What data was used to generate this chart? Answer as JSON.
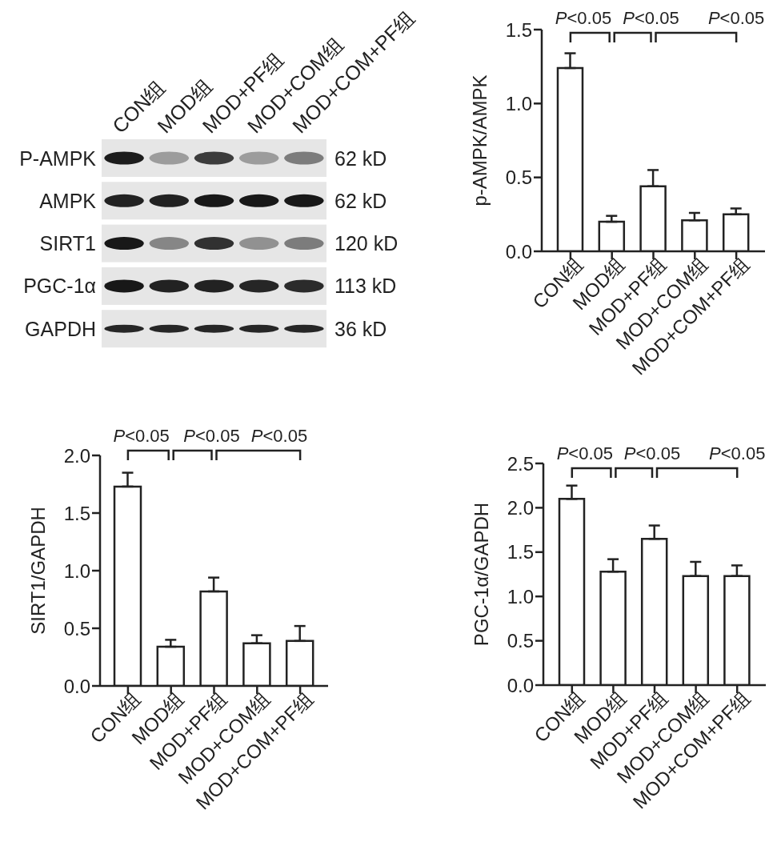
{
  "chart_data": [
    {
      "type": "other",
      "categories": [
        "CON组",
        "MOD组",
        "MOD+PF组",
        "MOD+COM组",
        "MOD+COM+PF组"
      ],
      "y_categories": [
        "P-AMPK",
        "AMPK",
        "SIRT1",
        "PGC-1α",
        "GAPDH"
      ],
      "y2_categories": [
        "62 kD",
        "62 kD",
        "120 kD",
        "113 kD",
        "36 kD"
      ]
    },
    {
      "type": "bar",
      "categories": [
        "CON组",
        "MOD组",
        "MOD+PF组",
        "MOD+COM组",
        "MOD+COM+PF组"
      ],
      "values": [
        1.24,
        0.2,
        0.44,
        0.21,
        0.25
      ],
      "errors": [
        [
          1.24,
          1.34
        ],
        [
          0.2,
          0.24
        ],
        [
          0.44,
          0.55
        ],
        [
          0.21,
          0.26
        ],
        [
          0.25,
          0.29
        ]
      ],
      "color": "#ffffff",
      "ylabel": "p-AMPK/AMPK",
      "ylim": [
        0,
        1.5
      ],
      "yticks": [
        {
          "value": 0,
          "label": "0.0"
        },
        0.5,
        {
          "value": 1,
          "label": "1.0"
        },
        1.5
      ],
      "annotations": [
        "P<0.05",
        "P<0.05",
        "P<0.05"
      ]
    },
    {
      "type": "bar",
      "categories": [
        "CON组",
        "MOD组",
        "MOD+PF组",
        "MOD+COM组",
        "MOD+COM+PF组"
      ],
      "values": [
        1.73,
        0.34,
        0.82,
        0.37,
        0.39
      ],
      "errors": [
        [
          1.73,
          1.85
        ],
        [
          0.34,
          0.4
        ],
        [
          0.82,
          0.94
        ],
        [
          0.37,
          0.44
        ],
        [
          0.39,
          0.52
        ]
      ],
      "color": "#ffffff",
      "ylabel": "SIRT1/GAPDH",
      "ylim": [
        0,
        2
      ],
      "yticks": [
        {
          "value": 0,
          "label": "0.0"
        },
        0.5,
        {
          "value": 1,
          "label": "1.0"
        },
        1.5,
        {
          "value": 2,
          "label": "2.0"
        }
      ],
      "annotations": [
        "P<0.05",
        "P<0.05",
        "P<0.05"
      ]
    },
    {
      "type": "bar",
      "categories": [
        "CON组",
        "MOD组",
        "MOD+PF组",
        "MOD+COM组",
        "MOD+COM+PF组"
      ],
      "values": [
        2.1,
        1.28,
        1.65,
        1.23,
        1.23
      ],
      "errors": [
        [
          2.1,
          2.25
        ],
        [
          1.28,
          1.42
        ],
        [
          1.65,
          1.8
        ],
        [
          1.23,
          1.39
        ],
        [
          1.23,
          1.35
        ]
      ],
      "color": "#ffffff",
      "ylabel": "PGC-1α/GAPDH",
      "ylim": [
        0,
        2.5
      ],
      "yticks": [
        {
          "value": 0,
          "label": "0.0"
        },
        0.5,
        {
          "value": 1,
          "label": "1.0"
        },
        1.5,
        {
          "value": 2,
          "label": "2.0"
        },
        2.5
      ],
      "annotations": [
        "P<0.05",
        "P<0.05",
        "P<0.05"
      ]
    }
  ]
}
